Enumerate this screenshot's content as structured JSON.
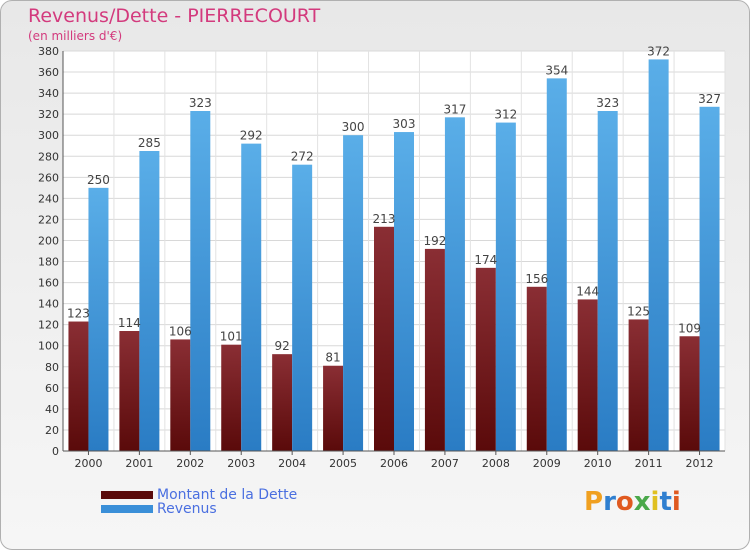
{
  "chart_data": {
    "type": "bar",
    "title": "Revenus/Dette - PIERRECOURT",
    "subtitle": "(en milliers d'€)",
    "categories": [
      "2000",
      "2001",
      "2002",
      "2003",
      "2004",
      "2005",
      "2006",
      "2007",
      "2008",
      "2009",
      "2010",
      "2011",
      "2012"
    ],
    "series": [
      {
        "name": "Montant de la Dette",
        "values": [
          123,
          114,
          106,
          101,
          92,
          81,
          213,
          192,
          174,
          156,
          144,
          125,
          109
        ]
      },
      {
        "name": "Revenus",
        "values": [
          250,
          285,
          323,
          292,
          272,
          300,
          303,
          317,
          312,
          354,
          323,
          372,
          327
        ]
      }
    ],
    "ylim": [
      0,
      380
    ],
    "ytick_step": 20,
    "grid": true,
    "legend_position": "bottom-left",
    "xlabel": "",
    "ylabel": ""
  },
  "colors": {
    "title": "#d33a7d",
    "debt_dark": "#5a0a0a",
    "debt_light": "#8a2e34",
    "revenue_dark": "#1f6fb8",
    "revenue_light": "#5aaee8",
    "legend_text": "#4a6fe0"
  },
  "branding": {
    "logo_text": "Proxiti"
  }
}
